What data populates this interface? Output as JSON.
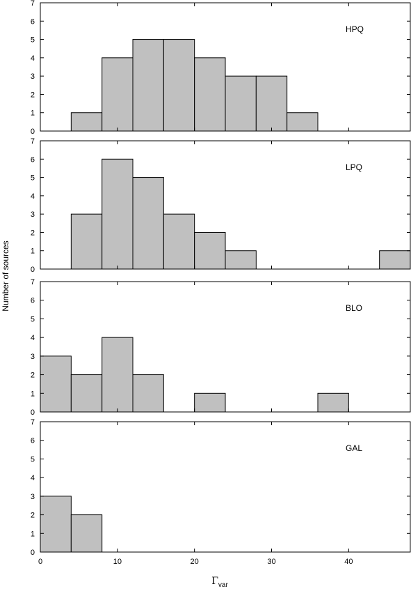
{
  "chart_data": {
    "type": "bar",
    "xlabel": "Γ",
    "xlabel_sub": "var",
    "ylabel": "Number of sources",
    "xlim": [
      0,
      48
    ],
    "ylim": [
      0,
      7
    ],
    "xticks": [
      0,
      10,
      20,
      30,
      40
    ],
    "yticks": [
      0,
      1,
      2,
      3,
      4,
      5,
      6,
      7
    ],
    "bin_width": 4,
    "panels": [
      {
        "label": "HPQ",
        "bins": [
          {
            "x0": 4,
            "x1": 8,
            "value": 1
          },
          {
            "x0": 8,
            "x1": 12,
            "value": 4
          },
          {
            "x0": 12,
            "x1": 16,
            "value": 5
          },
          {
            "x0": 16,
            "x1": 20,
            "value": 5
          },
          {
            "x0": 20,
            "x1": 24,
            "value": 4
          },
          {
            "x0": 24,
            "x1": 28,
            "value": 3
          },
          {
            "x0": 28,
            "x1": 32,
            "value": 3
          },
          {
            "x0": 32,
            "x1": 36,
            "value": 1
          }
        ]
      },
      {
        "label": "LPQ",
        "bins": [
          {
            "x0": 4,
            "x1": 8,
            "value": 3
          },
          {
            "x0": 8,
            "x1": 12,
            "value": 6
          },
          {
            "x0": 12,
            "x1": 16,
            "value": 5
          },
          {
            "x0": 16,
            "x1": 20,
            "value": 3
          },
          {
            "x0": 20,
            "x1": 24,
            "value": 2
          },
          {
            "x0": 24,
            "x1": 28,
            "value": 1
          },
          {
            "x0": 44,
            "x1": 48,
            "value": 1
          }
        ]
      },
      {
        "label": "BLO",
        "bins": [
          {
            "x0": 0,
            "x1": 4,
            "value": 3
          },
          {
            "x0": 4,
            "x1": 8,
            "value": 2
          },
          {
            "x0": 8,
            "x1": 12,
            "value": 4
          },
          {
            "x0": 12,
            "x1": 16,
            "value": 2
          },
          {
            "x0": 20,
            "x1": 24,
            "value": 1
          },
          {
            "x0": 36,
            "x1": 40,
            "value": 1
          }
        ]
      },
      {
        "label": "GAL",
        "bins": [
          {
            "x0": 0,
            "x1": 4,
            "value": 3
          },
          {
            "x0": 4,
            "x1": 8,
            "value": 2
          }
        ]
      }
    ],
    "bar_fill": "#c0c0c0",
    "bar_stroke": "#000000"
  }
}
